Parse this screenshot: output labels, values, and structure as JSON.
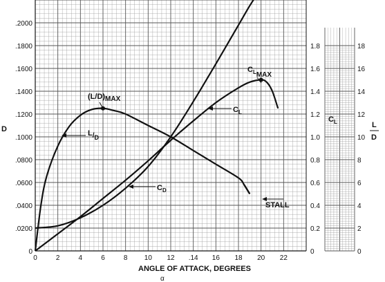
{
  "chart_data": {
    "type": "line",
    "x": [
      0,
      2,
      4,
      6,
      8,
      10,
      12,
      14,
      16,
      18,
      20,
      21.5
    ],
    "xlabel": "ANGLE OF ATTACK, DEGREES",
    "xsymbol": "α",
    "xlim": [
      0,
      24
    ],
    "x_ticks": [
      "0",
      "2",
      "4",
      "6",
      "8",
      "10",
      "12",
      ".14",
      "16",
      "18",
      "20",
      "22"
    ],
    "ylabel_left": "D",
    "ylim_left": [
      0,
      0.22
    ],
    "y_ticks_left": [
      "0",
      ".0200",
      ".0400",
      ".0600",
      ".0800",
      ".1000",
      ".1200",
      ".1400",
      ".1600",
      ".1800",
      ".2000"
    ],
    "ylabel_mid": "CL",
    "ylim_mid": [
      0,
      2.2
    ],
    "y_ticks_mid": [
      "0",
      "0.2",
      "0.4",
      "0.6",
      "0.8",
      "1.0",
      "1.2",
      "1.4",
      "1.6",
      "1.8"
    ],
    "ylabel_right": "L/D",
    "ylim_right": [
      0,
      22
    ],
    "y_ticks_right": [
      "0",
      "2",
      "4",
      "6",
      "8",
      "10",
      "12",
      "14",
      "16",
      "18"
    ],
    "grid": true,
    "series": [
      {
        "name": "CL",
        "axis": "mid",
        "x": [
          0,
          2,
          4,
          6,
          8,
          10,
          12,
          14,
          16,
          18,
          19,
          20,
          20.5,
          21,
          21.5
        ],
        "values": [
          0,
          0.15,
          0.3,
          0.46,
          0.62,
          0.79,
          0.97,
          1.14,
          1.3,
          1.43,
          1.48,
          1.5,
          1.48,
          1.4,
          1.25
        ]
      },
      {
        "name": "CD",
        "axis": "left",
        "x": [
          0,
          2,
          4,
          6,
          8,
          10,
          12,
          14,
          16,
          18,
          19,
          20
        ],
        "values": [
          0.02,
          0.022,
          0.029,
          0.04,
          0.055,
          0.074,
          0.1,
          0.131,
          0.164,
          0.198,
          0.215,
          0.23
        ]
      },
      {
        "name": "L/D",
        "axis": "right",
        "x": [
          0,
          0.5,
          1,
          2,
          3,
          4,
          5,
          6,
          7,
          8,
          10,
          12,
          14,
          16,
          18,
          18.5,
          19
        ],
        "values": [
          0,
          4,
          6.5,
          9.2,
          10.9,
          11.9,
          12.4,
          12.5,
          12.3,
          12,
          11,
          10,
          8.8,
          7.6,
          6.4,
          5.8,
          5.0
        ]
      }
    ],
    "annotations": {
      "cl_max_main": "C",
      "cl_max_sub": "L",
      "cl_max_sub2": "MAX",
      "ld_max_main": "(L/D)",
      "ld_max_sub": "MAX",
      "cl_label_main": "C",
      "cl_label_sub": "L",
      "cd_label_main": "C",
      "cd_label_sub": "D",
      "ld_label_main": "L",
      "ld_label_sub": "D",
      "stall": "STALL",
      "cl_axis_main": "C",
      "cl_axis_sub": "L",
      "ld_axis_top": "L",
      "ld_axis_bottom": "D"
    },
    "colors": {
      "line": "#111111",
      "grid": "#9a9a9a",
      "grid_major": "#555555",
      "background": "#ffffff"
    }
  }
}
